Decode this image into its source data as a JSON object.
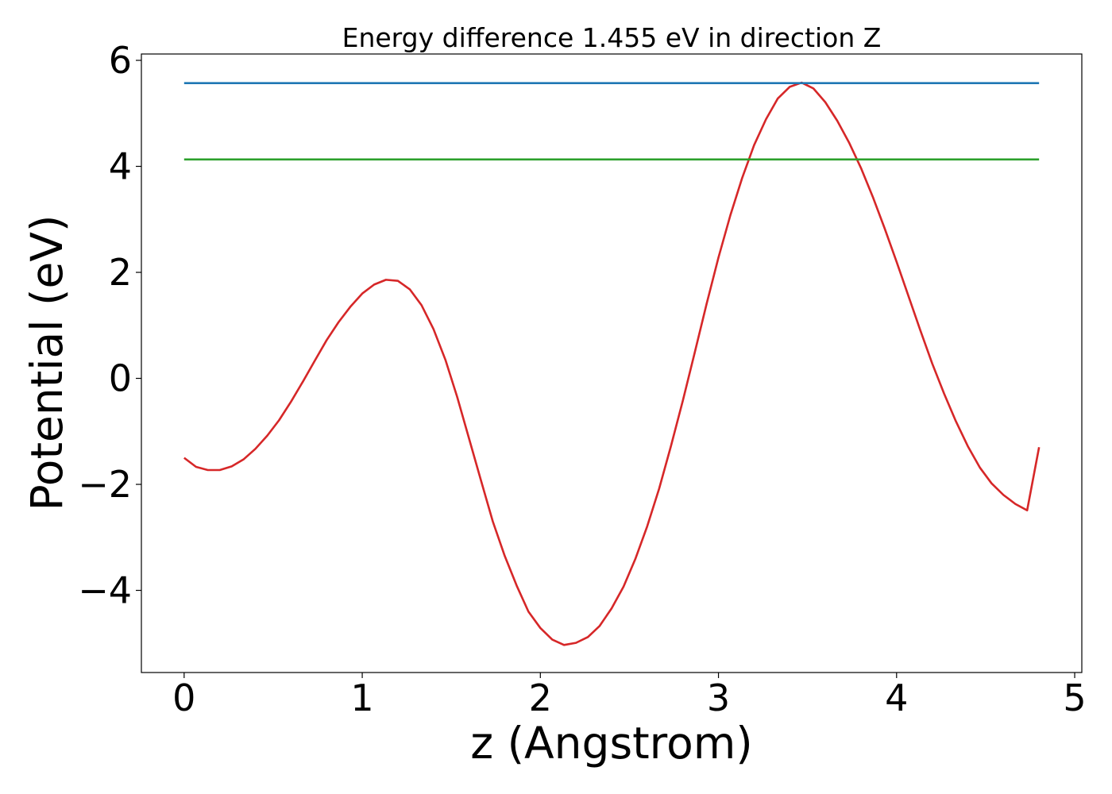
{
  "chart_data": {
    "type": "line",
    "title": "Energy difference 1.455 eV in direction Z",
    "xlabel": "z (Angstrom)",
    "ylabel": "Potential (eV)",
    "xlim": [
      -0.24,
      5.04
    ],
    "ylim": [
      -5.55,
      6.12
    ],
    "xticks": [
      0,
      1,
      2,
      3,
      4,
      5
    ],
    "xtick_labels": [
      "0",
      "1",
      "2",
      "3",
      "4",
      "5"
    ],
    "yticks": [
      -4,
      -2,
      0,
      2,
      4,
      6
    ],
    "ytick_labels": [
      "−4",
      "−2",
      "0",
      "2",
      "4",
      "6"
    ],
    "grid": false,
    "series": [
      {
        "color": "#d62728",
        "x": [
          0.0,
          0.067,
          0.133,
          0.2,
          0.267,
          0.333,
          0.4,
          0.467,
          0.533,
          0.6,
          0.667,
          0.733,
          0.8,
          0.867,
          0.933,
          1.0,
          1.067,
          1.133,
          1.2,
          1.267,
          1.333,
          1.4,
          1.467,
          1.533,
          1.6,
          1.667,
          1.733,
          1.8,
          1.867,
          1.933,
          2.0,
          2.067,
          2.133,
          2.2,
          2.267,
          2.333,
          2.4,
          2.467,
          2.533,
          2.6,
          2.667,
          2.733,
          2.8,
          2.867,
          2.933,
          3.0,
          3.067,
          3.133,
          3.2,
          3.267,
          3.333,
          3.4,
          3.467,
          3.533,
          3.6,
          3.667,
          3.733,
          3.8,
          3.867,
          3.933,
          4.0,
          4.067,
          4.133,
          4.2,
          4.267,
          4.333,
          4.4,
          4.467,
          4.533,
          4.6,
          4.667,
          4.733,
          4.8
        ],
        "y": [
          -1.5,
          -1.67,
          -1.73,
          -1.73,
          -1.66,
          -1.53,
          -1.33,
          -1.08,
          -0.79,
          -0.44,
          -0.06,
          0.33,
          0.72,
          1.06,
          1.35,
          1.6,
          1.77,
          1.86,
          1.84,
          1.68,
          1.38,
          0.93,
          0.35,
          -0.35,
          -1.14,
          -1.93,
          -2.7,
          -3.35,
          -3.91,
          -4.4,
          -4.71,
          -4.93,
          -5.03,
          -4.99,
          -4.88,
          -4.67,
          -4.34,
          -3.93,
          -3.41,
          -2.79,
          -2.08,
          -1.28,
          -0.42,
          0.49,
          1.4,
          2.28,
          3.08,
          3.78,
          4.4,
          4.89,
          5.28,
          5.5,
          5.58,
          5.47,
          5.21,
          4.86,
          4.45,
          3.97,
          3.42,
          2.83,
          2.2,
          1.55,
          0.91,
          0.28,
          -0.29,
          -0.81,
          -1.28,
          -1.68,
          -1.98,
          -2.2,
          -2.37,
          -2.49,
          -1.3
        ]
      },
      {
        "color": "#1f77b4",
        "x": [
          0.0,
          4.8
        ],
        "y": [
          5.57,
          5.57
        ]
      },
      {
        "color": "#2ca02c",
        "x": [
          0.0,
          4.8
        ],
        "y": [
          4.13,
          4.13
        ]
      }
    ]
  }
}
